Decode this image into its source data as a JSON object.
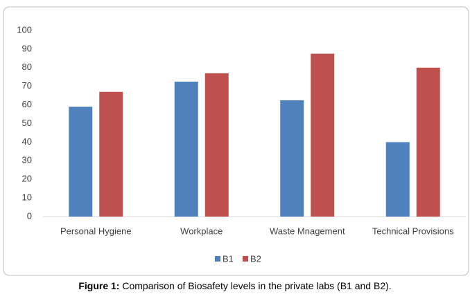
{
  "chart_data": {
    "type": "bar",
    "caption": {
      "label": "Figure 1:",
      "text": "Comparison of Biosafety levels in the private labs (B1 and B2)."
    },
    "categories": [
      "Personal Hygiene",
      "Workplace",
      "Waste Mnagement",
      "Technical Provisions"
    ],
    "series": [
      {
        "name": "B1",
        "color": "#4f81bd",
        "values": [
          59,
          72.5,
          62.5,
          40
        ]
      },
      {
        "name": "B2",
        "color": "#c0504d",
        "values": [
          67,
          77,
          87.5,
          80
        ]
      }
    ],
    "ylim": [
      0,
      100
    ],
    "yticks": [
      0,
      10,
      20,
      30,
      40,
      50,
      60,
      70,
      80,
      90,
      100
    ],
    "grid": false,
    "legend": "bottom"
  }
}
